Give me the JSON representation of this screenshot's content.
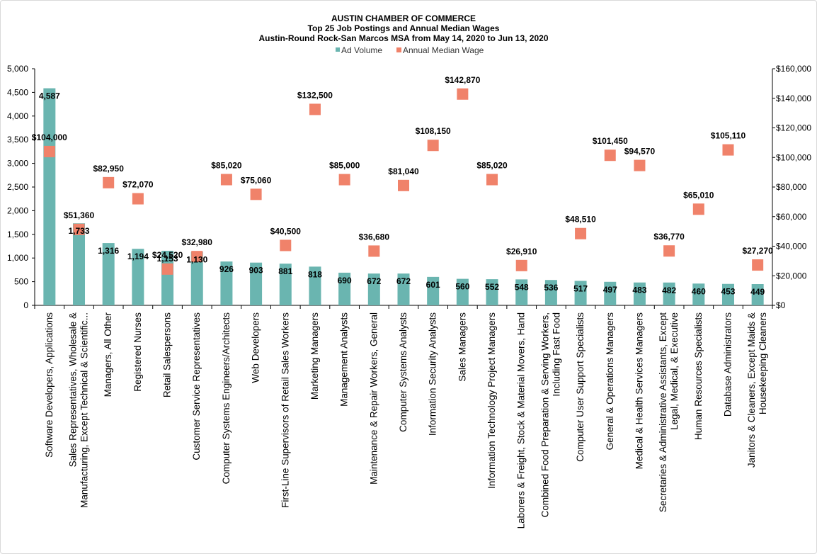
{
  "chart_data": {
    "type": "bar",
    "title": "AUSTIN CHAMBER  OF COMMERCE",
    "subtitle": "Top 25 Job Postings and Annual Median Wages",
    "subtitle2": "Austin-Round  Rock-San Marcos MSA from May 14, 2020 to Jun 13, 2020",
    "legend": [
      {
        "name": "Ad Volume",
        "color": "#6ab5b0",
        "marker": "bar"
      },
      {
        "name": "Annual Median Wage",
        "color": "#f0826a",
        "marker": "square"
      }
    ],
    "legend_position": "top",
    "grid": false,
    "y_left": {
      "ylim": [
        0,
        5000
      ],
      "ticks": [
        0,
        500,
        1000,
        1500,
        2000,
        2500,
        3000,
        3500,
        4000,
        4500,
        5000
      ],
      "tick_labels": [
        "0",
        "500",
        "1,000",
        "1,500",
        "2,000",
        "2,500",
        "3,000",
        "3,500",
        "4,000",
        "4,500",
        "5,000"
      ]
    },
    "y_right": {
      "ylim": [
        0,
        160000
      ],
      "ticks": [
        0,
        20000,
        40000,
        60000,
        80000,
        100000,
        120000,
        140000,
        160000
      ],
      "tick_labels": [
        "$0",
        "$20,000",
        "$40,000",
        "$60,000",
        "$80,000",
        "$100,000",
        "$120,000",
        "$140,000",
        "$160,000"
      ]
    },
    "categories": [
      [
        "Software Developers, Applications"
      ],
      [
        "Sales Representatives, Wholesale &",
        "Manufacturing, Except Technical & Scientific..."
      ],
      [
        "Managers, All Other"
      ],
      [
        "Registered Nurses"
      ],
      [
        "Retail Salespersons"
      ],
      [
        "Customer Service Representatives"
      ],
      [
        "Computer Systems Engineers/Architects"
      ],
      [
        "Web Developers"
      ],
      [
        "First-Line Supervisors of Retail Sales Workers"
      ],
      [
        "Marketing Managers"
      ],
      [
        "Management Analysts"
      ],
      [
        "Maintenance & Repair Workers, General"
      ],
      [
        "Computer Systems Analysts"
      ],
      [
        "Information Security Analysts"
      ],
      [
        "Sales Managers"
      ],
      [
        "Information Technology Project Managers"
      ],
      [
        "Laborers & Freight, Stock & Material Movers, Hand"
      ],
      [
        "Combined Food Preparation & Serving Workers,",
        "Including Fast Food"
      ],
      [
        "Computer User Support Specialists"
      ],
      [
        "General & Operations Managers"
      ],
      [
        "Medical & Health Services Managers"
      ],
      [
        "Secretaries & Administrative Assistants, Except",
        "Legal, Medical, & Executive"
      ],
      [
        "Human Resources Specialists"
      ],
      [
        "Database Administrators"
      ],
      [
        "Janitors & Cleaners, Except Maids &",
        "Housekeeping Cleaners"
      ]
    ],
    "series": [
      {
        "name": "Ad Volume",
        "axis": "left",
        "values": [
          4587,
          1733,
          1316,
          1194,
          1153,
          1130,
          926,
          903,
          881,
          818,
          690,
          672,
          672,
          601,
          560,
          552,
          548,
          536,
          517,
          497,
          483,
          482,
          460,
          453,
          449
        ],
        "labels": [
          "4,587",
          "1,733",
          "1,316",
          "1,194",
          "1,153",
          "1,130",
          "926",
          "903",
          "881",
          "818",
          "690",
          "672",
          "672",
          "601",
          "560",
          "552",
          "548",
          "536",
          "517",
          "497",
          "483",
          "482",
          "460",
          "453",
          "449"
        ]
      },
      {
        "name": "Annual Median Wage",
        "axis": "right",
        "values": [
          104000,
          51360,
          82950,
          72070,
          24520,
          32980,
          85020,
          75060,
          40500,
          132500,
          85000,
          36680,
          81040,
          108150,
          142870,
          85020,
          26910,
          null,
          48510,
          101450,
          94570,
          36770,
          65010,
          105110,
          27270
        ],
        "labels": [
          "$104,000",
          "$51,360",
          "$82,950",
          "$72,070",
          "$24,520",
          "$32,980",
          "$85,020",
          "$75,060",
          "$40,500",
          "$132,500",
          "$85,000",
          "$36,680",
          "$81,040",
          "$108,150",
          "$142,870",
          "$85,020",
          "$26,910",
          "",
          "$48,510",
          "$101,450",
          "$94,570",
          "$36,770",
          "$65,010",
          "$105,110",
          "$27,270"
        ]
      }
    ]
  }
}
